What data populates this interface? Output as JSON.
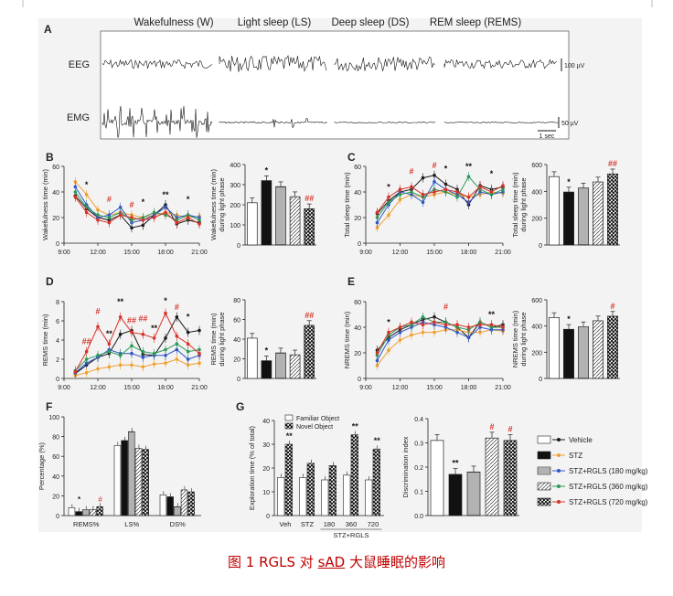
{
  "page": {
    "caption_prefix": "图 1 RGLS 对 ",
    "caption_u": "sAD",
    "caption_suffix": " 大鼠睡眠的影响"
  },
  "colors": {
    "black": "#1a1a1a",
    "orange": "#f0a030",
    "blue": "#2f56c8",
    "green": "#2a9a5a",
    "red": "#d8332a",
    "sig_red": "#d8332a",
    "sig_blue": "#2f56c8"
  },
  "panel_a": {
    "letter": "A",
    "states": [
      "Wakefulness (W)",
      "Light sleep (LS)",
      "Deep sleep (DS)",
      "REM sleep (REMS)"
    ],
    "eeg_label": "EEG",
    "emg_label": "EMG",
    "eeg_scale": "100 µV",
    "emg_scale": "50 µV",
    "time_scale": "1 sec"
  },
  "time_ticks": [
    "9:00",
    "12:00",
    "15:00",
    "18:00",
    "21:00"
  ],
  "chart_data": [
    {
      "id": "B-line",
      "type": "line",
      "letter": "B",
      "ylabel": "Wakefulness time (min)",
      "ylim": [
        0,
        60
      ],
      "yticks": [
        "0",
        "20",
        "40",
        "60"
      ],
      "x": [
        10,
        11,
        12,
        13,
        14,
        15,
        16,
        17,
        18,
        19,
        20,
        21
      ],
      "series": [
        {
          "name": "Vehicle",
          "color": "black",
          "values": [
            37,
            27,
            20,
            18,
            22,
            12,
            14,
            22,
            30,
            15,
            18,
            16
          ]
        },
        {
          "name": "STZ",
          "color": "orange",
          "values": [
            48,
            38,
            26,
            22,
            24,
            22,
            20,
            22,
            24,
            22,
            20,
            21
          ]
        },
        {
          "name": "STZ+RGLS (180 mg/kg)",
          "color": "blue",
          "values": [
            44,
            30,
            20,
            22,
            28,
            16,
            18,
            22,
            28,
            20,
            22,
            20
          ]
        },
        {
          "name": "STZ+RGLS (360 mg/kg)",
          "color": "green",
          "values": [
            40,
            28,
            22,
            20,
            24,
            18,
            20,
            24,
            22,
            18,
            22,
            18
          ]
        },
        {
          "name": "STZ+RGLS (720 mg/kg)",
          "color": "red",
          "values": [
            36,
            24,
            18,
            16,
            22,
            20,
            18,
            20,
            24,
            16,
            20,
            15
          ]
        }
      ],
      "annotations": [
        "*",
        "#",
        "#",
        "*",
        "**",
        "*"
      ]
    },
    {
      "id": "B-bar",
      "type": "bar",
      "ylabel": "Wakefulness time (min) during light phase",
      "ylim": [
        0,
        400
      ],
      "yticks": [
        "0",
        "100",
        "200",
        "300",
        "400"
      ],
      "values": [
        210,
        320,
        290,
        240,
        180
      ],
      "annotations": [
        "",
        "*",
        "",
        "",
        "##"
      ]
    },
    {
      "id": "C-line",
      "type": "line",
      "letter": "C",
      "ylabel": "Total sleep time (min)",
      "ylim": [
        0,
        60
      ],
      "yticks": [
        "0",
        "20",
        "40",
        "60"
      ],
      "x": [
        10,
        11,
        12,
        13,
        14,
        15,
        16,
        17,
        18,
        19,
        20,
        21
      ],
      "series": [
        {
          "name": "Vehicle",
          "color": "black",
          "values": [
            23,
            33,
            40,
            42,
            51,
            53,
            46,
            42,
            30,
            45,
            42,
            44
          ]
        },
        {
          "name": "STZ",
          "color": "orange",
          "values": [
            12,
            22,
            34,
            38,
            36,
            38,
            40,
            38,
            36,
            38,
            40,
            39
          ]
        },
        {
          "name": "STZ+RGLS (180 mg/kg)",
          "color": "blue",
          "values": [
            16,
            30,
            40,
            38,
            32,
            48,
            42,
            38,
            32,
            40,
            38,
            40
          ]
        },
        {
          "name": "STZ+RGLS (360 mg/kg)",
          "color": "green",
          "values": [
            20,
            32,
            38,
            40,
            36,
            42,
            40,
            36,
            52,
            42,
            38,
            42
          ]
        },
        {
          "name": "STZ+RGLS (720 mg/kg)",
          "color": "red",
          "values": [
            24,
            36,
            42,
            44,
            38,
            40,
            42,
            40,
            36,
            44,
            40,
            45
          ]
        }
      ],
      "annotations": [
        "*",
        "#",
        "#",
        "*",
        "**",
        "*"
      ]
    },
    {
      "id": "C-bar",
      "type": "bar",
      "ylabel": "Total sleep time (min) during light phase",
      "ylim": [
        0,
        600
      ],
      "yticks": [
        "0",
        "200",
        "400",
        "600"
      ],
      "values": [
        510,
        395,
        425,
        470,
        530
      ],
      "annotations": [
        "",
        "*",
        "",
        "",
        "##"
      ]
    },
    {
      "id": "D-line",
      "type": "line",
      "letter": "D",
      "ylabel": "REMS time (min)",
      "ylim": [
        0,
        8
      ],
      "yticks": [
        "0",
        "2",
        "4",
        "6",
        "8"
      ],
      "x": [
        10,
        11,
        12,
        13,
        14,
        15,
        16,
        17,
        18,
        19,
        20,
        21
      ],
      "series": [
        {
          "name": "Vehicle",
          "color": "black",
          "values": [
            0.5,
            1.4,
            2.2,
            2.6,
            4.6,
            5.0,
            2.5,
            2.4,
            4.2,
            6.4,
            4.8,
            5.0
          ]
        },
        {
          "name": "STZ",
          "color": "orange",
          "values": [
            0.3,
            0.6,
            1.0,
            1.2,
            1.4,
            1.4,
            1.2,
            1.5,
            1.6,
            2.0,
            1.4,
            1.6
          ]
        },
        {
          "name": "STZ+RGLS (180 mg/kg)",
          "color": "blue",
          "values": [
            0.6,
            1.6,
            2.2,
            3.0,
            2.6,
            2.6,
            2.2,
            2.4,
            2.4,
            3.0,
            2.0,
            2.4
          ]
        },
        {
          "name": "STZ+RGLS (360 mg/kg)",
          "color": "green",
          "values": [
            0.8,
            2.0,
            2.4,
            2.8,
            2.4,
            3.4,
            2.8,
            2.6,
            3.0,
            3.6,
            2.8,
            3.0
          ]
        },
        {
          "name": "STZ+RGLS (720 mg/kg)",
          "color": "red",
          "values": [
            0.7,
            2.8,
            5.4,
            3.6,
            6.4,
            4.8,
            4.6,
            4.2,
            6.8,
            4.4,
            3.6,
            2.6
          ]
        }
      ],
      "annotations": [
        "##",
        "#",
        "**",
        "**",
        "##",
        "##",
        "**",
        "*",
        "#",
        "*"
      ]
    },
    {
      "id": "D-bar",
      "type": "bar",
      "ylabel": "REMS time (min) during light phase",
      "ylim": [
        0,
        80
      ],
      "yticks": [
        "0",
        "20",
        "40",
        "60",
        "80"
      ],
      "values": [
        41,
        18,
        26,
        24,
        54
      ],
      "annotations": [
        "",
        "*",
        "",
        "",
        "##"
      ]
    },
    {
      "id": "E-line",
      "type": "line",
      "letter": "E",
      "ylabel": "NREMS time (min)",
      "ylim": [
        0,
        60
      ],
      "yticks": [
        "0",
        "20",
        "40",
        "60"
      ],
      "x": [
        10,
        11,
        12,
        13,
        14,
        15,
        16,
        17,
        18,
        19,
        20,
        21
      ],
      "series": [
        {
          "name": "Vehicle",
          "color": "black",
          "values": [
            22,
            32,
            38,
            42,
            46,
            48,
            44,
            40,
            32,
            44,
            40,
            42
          ]
        },
        {
          "name": "STZ",
          "color": "orange",
          "values": [
            10,
            22,
            30,
            34,
            36,
            36,
            38,
            38,
            36,
            36,
            38,
            37
          ]
        },
        {
          "name": "STZ+RGLS (180 mg/kg)",
          "color": "blue",
          "values": [
            14,
            30,
            36,
            40,
            44,
            42,
            40,
            36,
            32,
            40,
            38,
            38
          ]
        },
        {
          "name": "STZ+RGLS (360 mg/kg)",
          "color": "green",
          "values": [
            18,
            34,
            40,
            42,
            48,
            44,
            44,
            40,
            38,
            44,
            40,
            40
          ]
        },
        {
          "name": "STZ+RGLS (720 mg/kg)",
          "color": "red",
          "values": [
            20,
            36,
            40,
            44,
            42,
            44,
            42,
            42,
            40,
            42,
            42,
            40
          ]
        }
      ],
      "annotations": [
        "*",
        "#",
        "**"
      ]
    },
    {
      "id": "E-bar",
      "type": "bar",
      "ylabel": "NREMS time (min) during light phase",
      "ylim": [
        0,
        600
      ],
      "yticks": [
        "0",
        "200",
        "400",
        "600"
      ],
      "values": [
        465,
        375,
        395,
        440,
        475
      ],
      "annotations": [
        "",
        "*",
        "",
        "",
        "#"
      ]
    },
    {
      "id": "F",
      "type": "bar",
      "letter": "F",
      "ylabel": "Percentage (%)",
      "ylim": [
        0,
        100
      ],
      "yticks": [
        "0",
        "20",
        "40",
        "60",
        "80",
        "100"
      ],
      "categories": [
        "REMS%",
        "LS%",
        "DS%"
      ],
      "series": [
        {
          "name": "Vehicle",
          "values": [
            8,
            71,
            21
          ]
        },
        {
          "name": "STZ",
          "values": [
            4,
            76,
            19
          ]
        },
        {
          "name": "STZ+RGLS (180 mg/kg)",
          "values": [
            6,
            85,
            9
          ]
        },
        {
          "name": "STZ+RGLS (360 mg/kg)",
          "values": [
            6,
            68,
            26
          ]
        },
        {
          "name": "STZ+RGLS (720 mg/kg)",
          "values": [
            9,
            67,
            24
          ]
        }
      ],
      "annotations": [
        "*",
        "#"
      ]
    },
    {
      "id": "G-expl",
      "type": "bar",
      "letter": "G",
      "ylabel": "Exploration time (% of total)",
      "ylim": [
        0,
        40
      ],
      "yticks": [
        "0",
        "10",
        "20",
        "30",
        "40"
      ],
      "categories": [
        "Veh",
        "STZ",
        "180",
        "360",
        "720"
      ],
      "group_label": "STZ+RGLS",
      "legend": [
        "Familiar Object",
        "Novel Object"
      ],
      "series": [
        {
          "name": "Familiar Object",
          "values": [
            16,
            16,
            15,
            17,
            15
          ]
        },
        {
          "name": "Novel Object",
          "values": [
            30,
            22,
            21,
            34,
            28
          ]
        }
      ],
      "annotations": [
        "**",
        "**",
        "**"
      ]
    },
    {
      "id": "G-di",
      "type": "bar",
      "ylabel": "Discrimination index",
      "ylim": [
        0,
        0.4
      ],
      "yticks": [
        "0.0",
        "0.1",
        "0.2",
        "0.3",
        "0.4"
      ],
      "values": [
        0.31,
        0.17,
        0.18,
        0.32,
        0.31
      ],
      "annotations": [
        "",
        "**",
        "",
        "#",
        "#"
      ]
    }
  ],
  "legend": {
    "items": [
      "Vehicle",
      "STZ",
      "STZ+RGLS (180 mg/kg)",
      "STZ+RGLS (360 mg/kg)",
      "STZ+RGLS (720 mg/kg)"
    ],
    "colors": [
      "black",
      "orange",
      "blue",
      "green",
      "red"
    ]
  }
}
